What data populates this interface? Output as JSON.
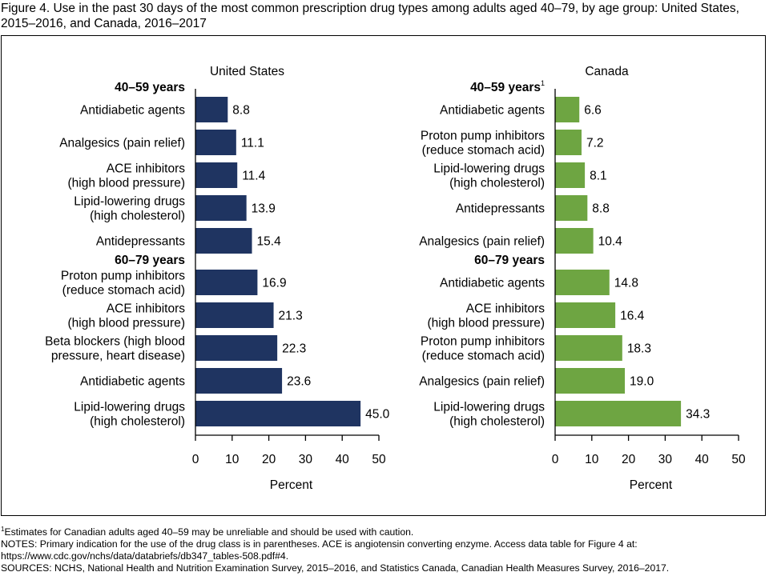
{
  "title": "Figure 4. Use in the past 30 days of the most common prescription drug types among adults aged 40–79, by age group: United States, 2015–2016, and Canada, 2016–2017",
  "colors": {
    "us_bar": "#1f3461",
    "canada_bar": "#6ea542",
    "axis": "#000000",
    "border": "#000000"
  },
  "chart_data": [
    {
      "type": "bar",
      "orientation": "horizontal",
      "title": "United States",
      "xlabel": "Percent",
      "xlim": [
        0,
        50
      ],
      "xticks": [
        0,
        10,
        20,
        30,
        40,
        50
      ],
      "grid": false,
      "groups": [
        {
          "label": "40–59 years",
          "footnote_mark": "",
          "bars": [
            {
              "label": [
                "Antidiabetic agents"
              ],
              "value": 8.8
            },
            {
              "label": [
                "Analgesics (pain relief)"
              ],
              "value": 11.1
            },
            {
              "label": [
                "ACE inhibitors",
                "(high blood pressure)"
              ],
              "value": 11.4
            },
            {
              "label": [
                "Lipid-lowering drugs",
                "(high cholesterol)"
              ],
              "value": 13.9
            },
            {
              "label": [
                "Antidepressants"
              ],
              "value": 15.4
            }
          ]
        },
        {
          "label": "60–79 years",
          "footnote_mark": "",
          "bars": [
            {
              "label": [
                "Proton pump inhibitors",
                "(reduce stomach acid)"
              ],
              "value": 16.9
            },
            {
              "label": [
                "ACE inhibitors",
                "(high blood pressure)"
              ],
              "value": 21.3
            },
            {
              "label": [
                "Beta blockers (high blood",
                "pressure, heart disease)"
              ],
              "value": 22.3
            },
            {
              "label": [
                "Antidiabetic agents"
              ],
              "value": 23.6
            },
            {
              "label": [
                "Lipid-lowering drugs",
                "(high cholesterol)"
              ],
              "value": 45.0
            }
          ]
        }
      ]
    },
    {
      "type": "bar",
      "orientation": "horizontal",
      "title": "Canada",
      "xlabel": "Percent",
      "xlim": [
        0,
        50
      ],
      "xticks": [
        0,
        10,
        20,
        30,
        40,
        50
      ],
      "grid": false,
      "groups": [
        {
          "label": "40–59 years",
          "footnote_mark": "1",
          "bars": [
            {
              "label": [
                "Antidiabetic agents"
              ],
              "value": 6.6
            },
            {
              "label": [
                "Proton pump inhibitors",
                "(reduce stomach acid)"
              ],
              "value": 7.2
            },
            {
              "label": [
                "Lipid-lowering drugs",
                "(high cholesterol)"
              ],
              "value": 8.1
            },
            {
              "label": [
                "Antidepressants"
              ],
              "value": 8.8
            },
            {
              "label": [
                "Analgesics (pain relief)"
              ],
              "value": 10.4
            }
          ]
        },
        {
          "label": "60–79 years",
          "footnote_mark": "",
          "bars": [
            {
              "label": [
                "Antidiabetic agents"
              ],
              "value": 14.8
            },
            {
              "label": [
                "ACE inhibitors",
                "(high blood pressure)"
              ],
              "value": 16.4
            },
            {
              "label": [
                "Proton pump inhibitors",
                "(reduce stomach acid)"
              ],
              "value": 18.3
            },
            {
              "label": [
                "Analgesics (pain relief)"
              ],
              "value": 19.0
            },
            {
              "label": [
                "Lipid-lowering drugs",
                "(high cholesterol)"
              ],
              "value": 34.3
            }
          ]
        }
      ]
    }
  ],
  "notes": {
    "footnote_mark": "1",
    "footnote": "Estimates for Canadian adults aged 40–59 may be unreliable and should be used with caution.",
    "notes_1": "NOTES: Primary indication for the use of the drug class is in parentheses. ACE is angiotensin converting enzyme. Access data table for Figure 4 at:",
    "notes_2": "https://www.cdc.gov/nchs/data/databriefs/db347_tables-508.pdf#4.",
    "sources": "SOURCES: NCHS, National Health and Nutrition Examination Survey, 2015–2016, and Statistics Canada, Canadian Health Measures Survey, 2016–2017."
  }
}
